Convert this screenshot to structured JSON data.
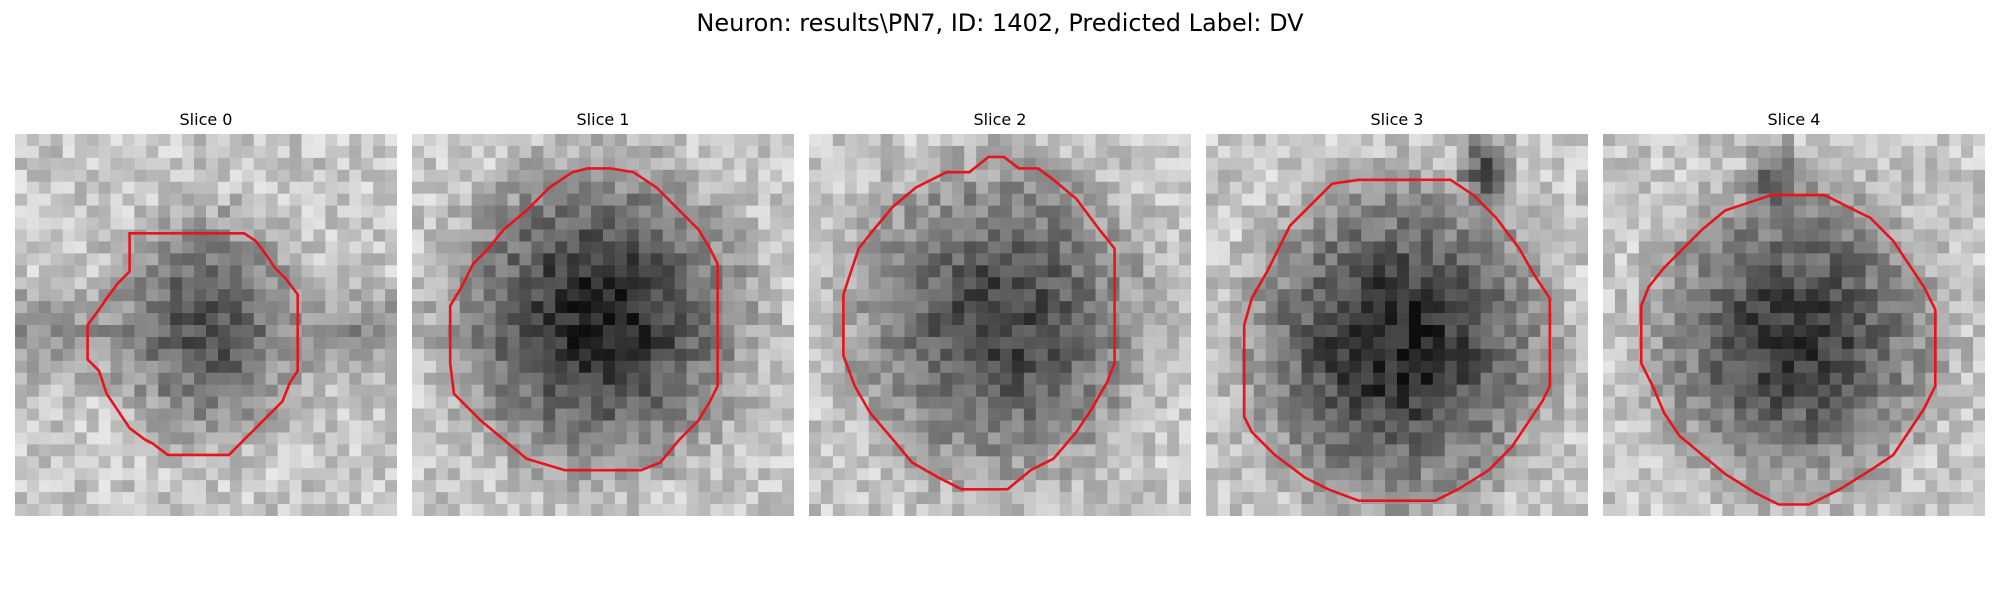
{
  "figure": {
    "title": "Neuron: results\\PN7, ID: 1402, Predicted Label: DV",
    "overlay_color": "#e8141c"
  },
  "slices": [
    {
      "title": "Slice 0"
    },
    {
      "title": "Slice 1"
    },
    {
      "title": "Slice 2"
    },
    {
      "title": "Slice 3"
    },
    {
      "title": "Slice 4"
    }
  ]
}
